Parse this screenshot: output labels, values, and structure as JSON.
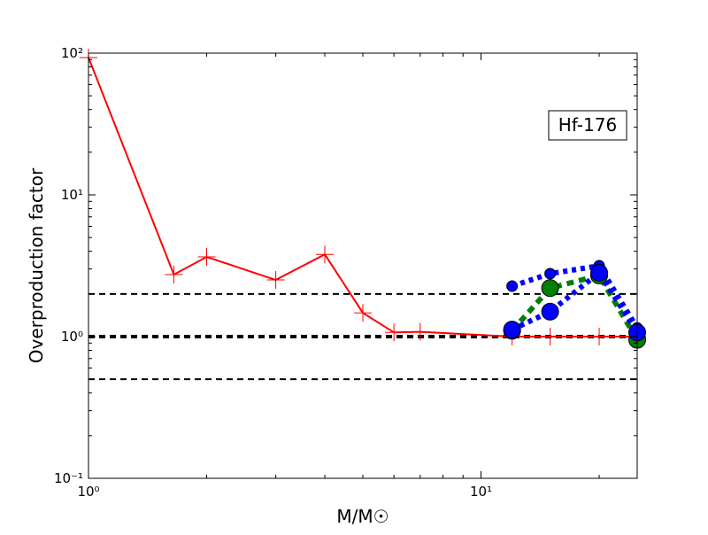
{
  "chart_data": {
    "type": "line",
    "x_label": "M/M☉",
    "y_label": "Overproduction factor",
    "annotation": "Hf-176",
    "xscale": "log",
    "yscale": "log",
    "xlim": [
      1,
      25
    ],
    "ylim": [
      0.1,
      100
    ],
    "xticks": [
      {
        "value": 1,
        "label": "10⁰"
      },
      {
        "value": 10,
        "label": "10¹"
      }
    ],
    "yticks": [
      {
        "value": 0.1,
        "label": "10⁻¹"
      },
      {
        "value": 1,
        "label": "10⁰"
      },
      {
        "value": 10,
        "label": "10¹"
      },
      {
        "value": 100,
        "label": "10²"
      }
    ],
    "minor_ticks": true,
    "reference_lines": [
      0.5,
      1,
      2
    ],
    "series": [
      {
        "color": "#ff0000",
        "linestyle": "solid",
        "marker": "plus",
        "x": [
          1,
          1.65,
          2,
          3,
          4,
          5,
          6,
          7,
          12,
          15,
          20,
          25
        ],
        "values": [
          93,
          2.74,
          3.65,
          2.51,
          3.8,
          1.47,
          1.07,
          1.08,
          1.0,
          1.0,
          1.0,
          1.0
        ]
      },
      {
        "color": "#008000",
        "linestyle": "dashed",
        "marker": "large",
        "x": [
          12,
          15,
          20,
          25
        ],
        "values": [
          1.1,
          2.2,
          2.7,
          0.95
        ]
      },
      {
        "color": "#0000ff",
        "linestyle": "dotted",
        "marker": "small",
        "x": [
          12,
          15,
          20,
          25
        ],
        "values": [
          2.27,
          2.78,
          3.16,
          1.15
        ]
      },
      {
        "color": "#0000ff",
        "linestyle": "dotted",
        "marker": "large",
        "x": [
          12,
          15,
          20,
          25
        ],
        "values": [
          1.12,
          1.5,
          2.82,
          1.07
        ]
      }
    ]
  }
}
